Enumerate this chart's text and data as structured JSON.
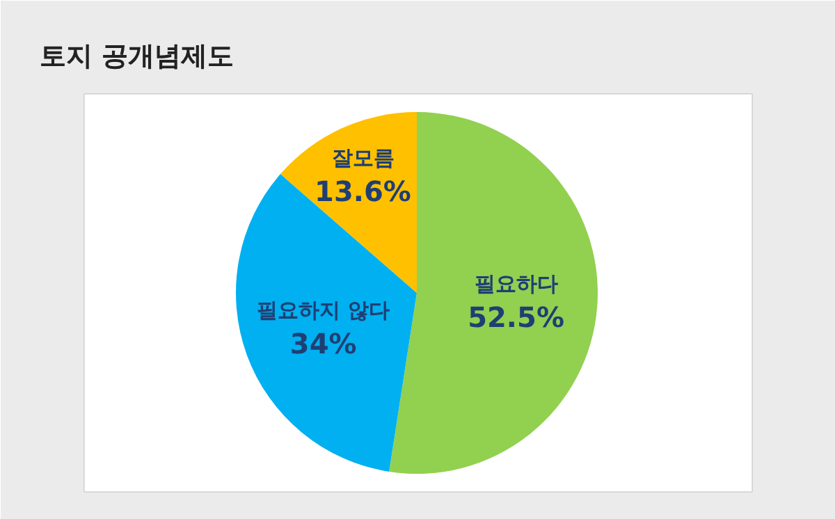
{
  "chart_data": {
    "type": "pie",
    "title": "토지 공개념제도",
    "categories": [
      "필요하다",
      "필요하지 않다",
      "잘모름"
    ],
    "values": [
      52.5,
      34,
      13.6
    ],
    "colors": [
      "#92d050",
      "#00b0f0",
      "#ffc000"
    ],
    "value_labels": [
      "52.5%",
      "34%",
      "13.6%"
    ]
  }
}
